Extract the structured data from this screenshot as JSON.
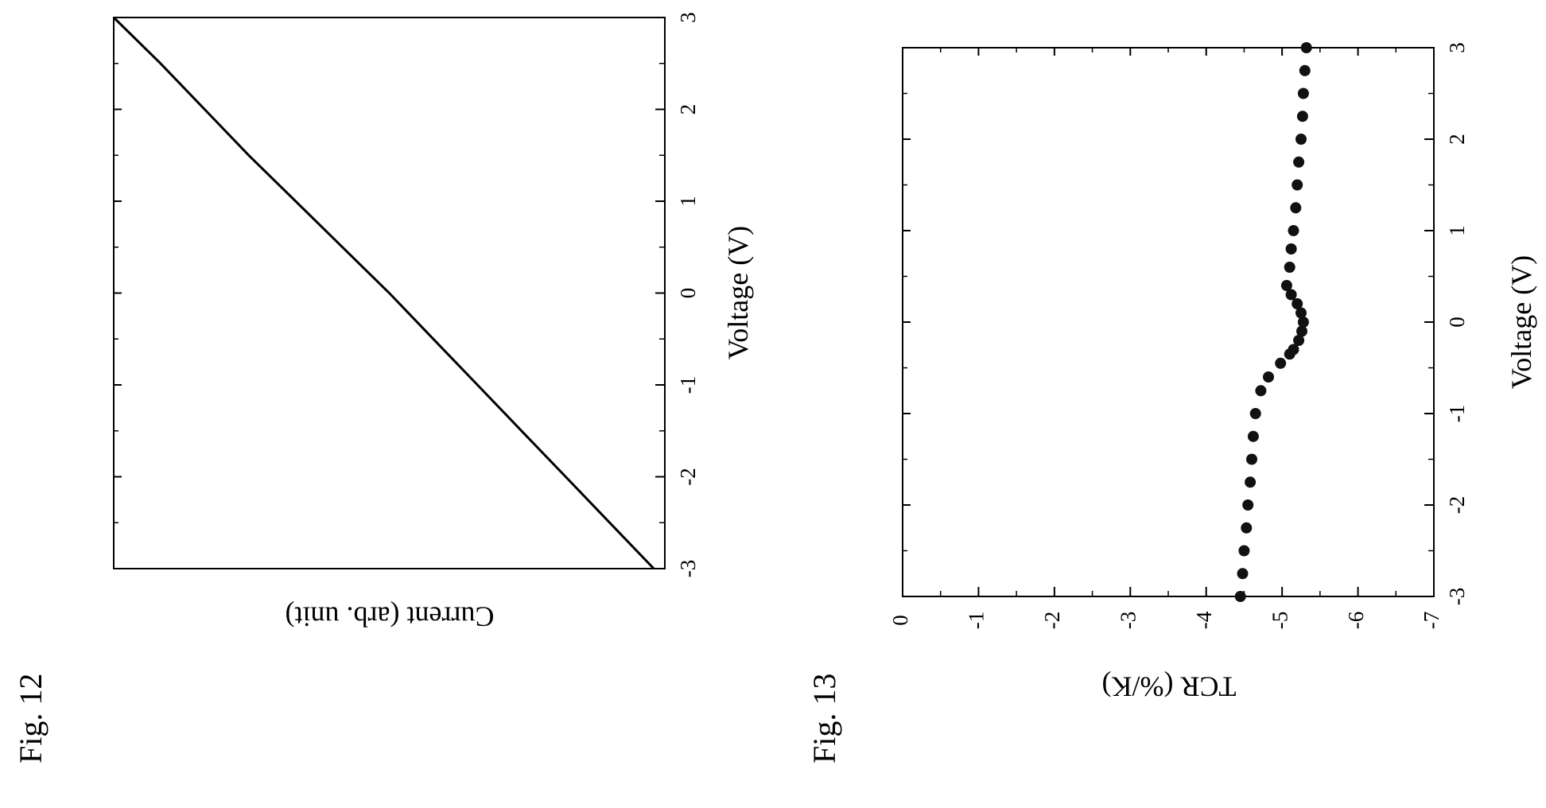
{
  "figures": [
    {
      "label": "Fig. 12"
    },
    {
      "label": "Fig. 13"
    }
  ],
  "chart_data": [
    {
      "type": "line",
      "xlabel": "Voltage (V)",
      "ylabel": "Current (arb. unit)",
      "xlim": [
        -3,
        3
      ],
      "xticks": [
        -3,
        -2,
        -1,
        0,
        1,
        2,
        3
      ],
      "x_tick_labels": [
        "-3",
        "-2",
        "-1",
        "0",
        "1",
        "2",
        "3"
      ],
      "ylim": [
        0,
        1
      ],
      "y_scale_unlabeled": true,
      "grid": false,
      "series": [
        {
          "x": [
            -3,
            -2.5,
            -2,
            -1.5,
            -1,
            -0.5,
            0,
            0.5,
            1,
            1.5,
            2,
            2.5,
            3
          ],
          "values": [
            0.02,
            0.1,
            0.18,
            0.26,
            0.34,
            0.42,
            0.5,
            0.585,
            0.67,
            0.755,
            0.835,
            0.915,
            1.0
          ]
        }
      ]
    },
    {
      "type": "scatter",
      "xlabel": "Voltage (V)",
      "ylabel": "TCR (%/K)",
      "xlim": [
        -3,
        3
      ],
      "ylim": [
        -7,
        0
      ],
      "xticks": [
        -3,
        -2,
        -1,
        0,
        1,
        2,
        3
      ],
      "x_tick_labels": [
        "-3",
        "-2",
        "-1",
        "0",
        "1",
        "2",
        "3"
      ],
      "yticks": [
        -7,
        -6,
        -5,
        -4,
        -3,
        -2,
        -1,
        0
      ],
      "y_tick_labels": [
        "-7",
        "-6",
        "-5",
        "-4",
        "-3",
        "-2",
        "-1",
        "0"
      ],
      "grid": false,
      "series": [
        {
          "x": [
            -3,
            -2.75,
            -2.5,
            -2.25,
            -2,
            -1.75,
            -1.5,
            -1.25,
            -1,
            -0.75,
            -0.6,
            -0.45,
            -0.35,
            -0.3,
            -0.2,
            -0.1,
            0,
            0.1,
            0.2,
            0.3,
            0.4,
            0.6,
            0.8,
            1,
            1.25,
            1.5,
            1.75,
            2,
            2.25,
            2.5,
            2.75,
            3
          ],
          "values": [
            -4.45,
            -4.48,
            -4.5,
            -4.53,
            -4.55,
            -4.58,
            -4.6,
            -4.62,
            -4.65,
            -4.72,
            -4.82,
            -4.98,
            -5.1,
            -5.15,
            -5.22,
            -5.26,
            -5.28,
            -5.25,
            -5.2,
            -5.12,
            -5.06,
            -5.1,
            -5.12,
            -5.15,
            -5.18,
            -5.2,
            -5.22,
            -5.25,
            -5.27,
            -5.28,
            -5.3,
            -5.32
          ]
        }
      ]
    }
  ]
}
